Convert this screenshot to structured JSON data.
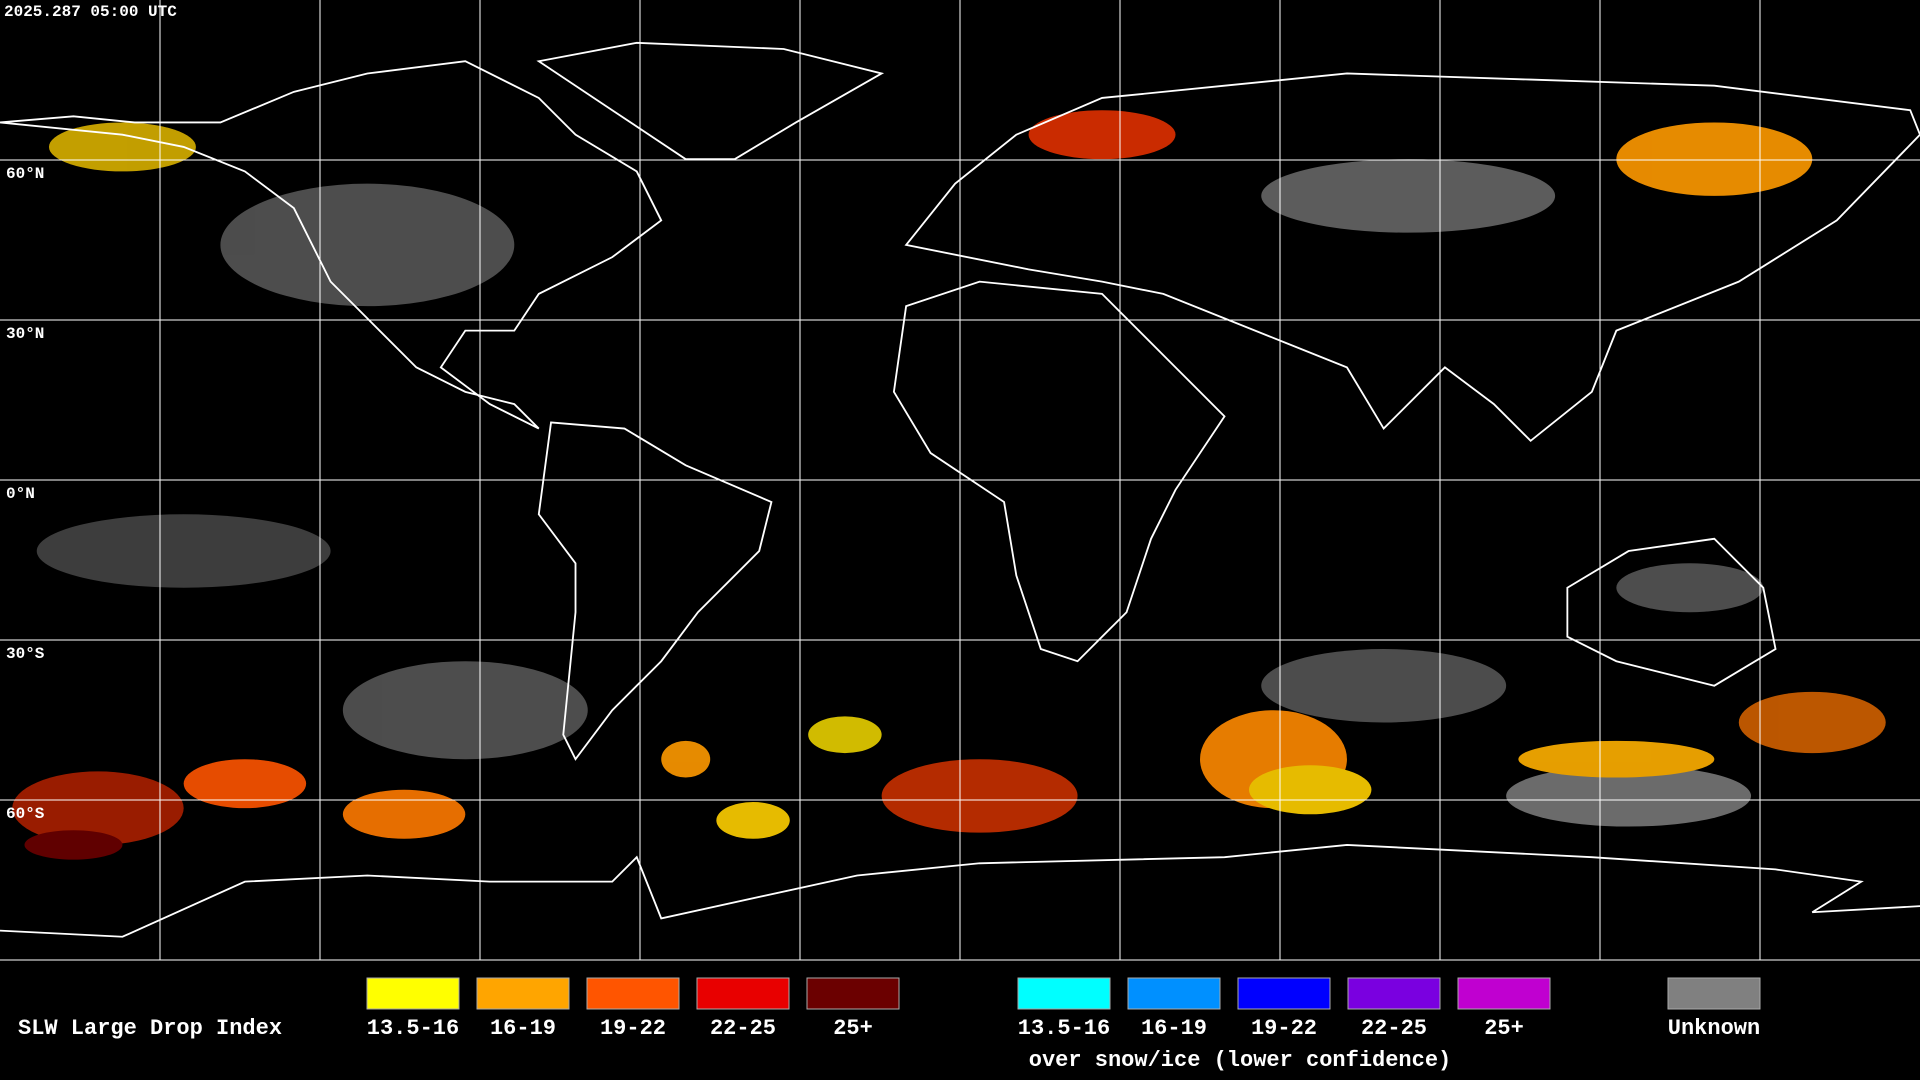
{
  "header": {
    "timestamp": "2025.287 05:00 UTC"
  },
  "map": {
    "latitude_labels": [
      "60°N",
      "30°N",
      "0°N",
      "30°S",
      "60°S"
    ]
  },
  "legend": {
    "title": "SLW Large Drop Index",
    "items": [
      {
        "label": "13.5-16",
        "color": "#ffff00"
      },
      {
        "label": "16-19",
        "color": "#ffa500"
      },
      {
        "label": "19-22",
        "color": "#ff5500"
      },
      {
        "label": "22-25",
        "color": "#e80000"
      },
      {
        "label": "25+",
        "color": "#6b0000"
      }
    ],
    "snow_items": [
      {
        "label": "13.5-16",
        "color": "#00ffff"
      },
      {
        "label": "16-19",
        "color": "#0090ff"
      },
      {
        "label": "19-22",
        "color": "#0000ff"
      },
      {
        "label": "22-25",
        "color": "#7a00e0"
      },
      {
        "label": "25+",
        "color": "#c000d0"
      }
    ],
    "snow_caption": "over snow/ice (lower confidence)",
    "unknown": {
      "label": "Unknown",
      "color": "#808080"
    }
  }
}
